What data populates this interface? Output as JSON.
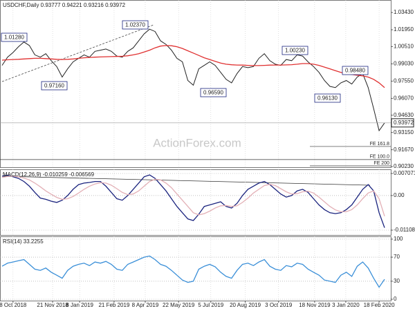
{
  "chart_data": [
    {
      "type": "line",
      "title": "USDCHF,Daily  0.93777 0.94221 0.93216 0.93972",
      "watermark": "ActionForex.com",
      "xlim": [
        0,
        70
      ],
      "ylim": [
        0.9017,
        1.045
      ],
      "grid": "x",
      "yticks": [
        {
          "value": 1.0343,
          "label": "1.03430"
        },
        {
          "value": 1.0195,
          "label": "1.01950"
        },
        {
          "value": 1.0051,
          "label": "1.00510"
        },
        {
          "value": 0.9903,
          "label": "0.99030"
        },
        {
          "value": 0.9755,
          "label": "0.97550"
        },
        {
          "value": 0.9607,
          "label": "0.96070"
        },
        {
          "value": 0.9463,
          "label": "0.94630"
        },
        {
          "value": 0.9315,
          "label": "0.93150"
        },
        {
          "value": 0.9167,
          "label": "0.91670"
        },
        {
          "value": 0.9023,
          "label": "0.90230"
        }
      ],
      "price_line": {
        "value": 0.93972,
        "label": "0.93972"
      },
      "fib_levels": [
        {
          "value": 0.9195,
          "label": "FE 161.8"
        },
        {
          "value": 0.9083,
          "label": "FE 100.0"
        },
        {
          "value": 0.9029,
          "label": "FE 200"
        }
      ],
      "annotations": [
        "1.01280",
        "0.97160",
        "1.02370",
        "0.96590",
        "1.00230",
        "0.98480",
        "0.96130"
      ],
      "series": [
        {
          "color": "#222222",
          "values": [
            0.989,
            0.996,
            1.0,
            1.005,
            1.009,
            1.006,
            0.998,
            0.996,
            0.999,
            0.993,
            0.988,
            0.979,
            0.986,
            0.992,
            0.995,
            0.998,
            0.996,
            1.001,
            1.002,
            1.003,
            1.001,
            0.997,
            0.996,
            1.001,
            1.004,
            1.01,
            1.016,
            1.02,
            1.018,
            1.01,
            1.007,
            1.002,
            0.995,
            0.992,
            0.976,
            0.972,
            0.986,
            0.989,
            0.992,
            0.989,
            0.983,
            0.977,
            0.974,
            0.982,
            0.988,
            0.987,
            0.988,
            0.995,
            0.999,
            0.993,
            0.99,
            0.989,
            0.994,
            0.993,
            0.998,
            0.997,
            0.992,
            0.988,
            0.983,
            0.976,
            0.971,
            0.97,
            0.974,
            0.976,
            0.973,
            0.979,
            0.982,
            0.97,
            0.952,
            0.933,
            0.9397
          ]
        },
        {
          "color": "#e03030",
          "values": [
            0.9935,
            0.9938,
            0.994,
            0.9942,
            0.9945,
            0.9948,
            0.995,
            0.995,
            0.9948,
            0.9945,
            0.9942,
            0.994,
            0.9942,
            0.9945,
            0.995,
            0.9955,
            0.9958,
            0.996,
            0.9962,
            0.9964,
            0.9965,
            0.9966,
            0.9968,
            0.9972,
            0.998,
            0.999,
            1.0005,
            1.002,
            1.004,
            1.0055,
            1.006,
            1.0058,
            1.005,
            1.0035,
            1.0015,
            0.9995,
            0.9975,
            0.9955,
            0.994,
            0.9925,
            0.991,
            0.99,
            0.9895,
            0.9893,
            0.9892,
            0.989,
            0.9888,
            0.9888,
            0.989,
            0.9892,
            0.9893,
            0.9893,
            0.9894,
            0.9896,
            0.99,
            0.9905,
            0.9905,
            0.99,
            0.989,
            0.9875,
            0.986,
            0.9845,
            0.983,
            0.982,
            0.9812,
            0.9805,
            0.98,
            0.979,
            0.977,
            0.974,
            0.97
          ]
        }
      ]
    },
    {
      "type": "line",
      "title": "MACD(12,26,9) -0.010259 -0.006569",
      "xlim": [
        0,
        70
      ],
      "ylim": [
        -0.012631,
        0.008397
      ],
      "grid": "both",
      "yticks": [
        {
          "value": 0.007071,
          "label": "0.007071"
        },
        {
          "value": 0,
          "label": "0.00"
        },
        {
          "value": -0.011084,
          "label": "-0.011084"
        }
      ],
      "series": [
        {
          "color": "#1a237e",
          "values": [
            0.0062,
            0.0065,
            0.006,
            0.0055,
            0.0045,
            0.003,
            0.001,
            -0.0008,
            -0.0012,
            -0.0018,
            -0.0022,
            -0.0015,
            0.0,
            0.002,
            0.0035,
            0.004,
            0.0042,
            0.0045,
            0.0045,
            0.003,
            0.001,
            -0.001,
            -0.0015,
            0.0,
            0.002,
            0.004,
            0.006,
            0.0066,
            0.0055,
            0.0035,
            0.0015,
            -0.001,
            -0.0035,
            -0.0055,
            -0.0075,
            -0.008,
            -0.006,
            -0.0035,
            -0.003,
            -0.0025,
            -0.002,
            -0.0035,
            -0.004,
            -0.0025,
            0.0,
            0.002,
            0.003,
            0.004,
            0.0045,
            0.0035,
            0.002,
            0.0005,
            -0.0005,
            0.0,
            0.0015,
            0.002,
            0.001,
            -0.001,
            -0.003,
            -0.0045,
            -0.0055,
            -0.0058,
            -0.0055,
            -0.0045,
            -0.003,
            -0.0005,
            0.002,
            0.0035,
            0.0015,
            -0.0055,
            -0.0103
          ]
        },
        {
          "color": "#e3b0b6",
          "values": [
            0.0058,
            0.0061,
            0.0062,
            0.006,
            0.0056,
            0.005,
            0.004,
            0.0028,
            0.0015,
            0.0004,
            -0.0006,
            -0.0012,
            -0.001,
            -0.0003,
            0.0008,
            0.002,
            0.003,
            0.0037,
            0.0041,
            0.004,
            0.0033,
            0.0022,
            0.001,
            0.0003,
            0.0005,
            0.0015,
            0.003,
            0.0045,
            0.0052,
            0.005,
            0.004,
            0.0025,
            0.0005,
            -0.0015,
            -0.0035,
            -0.0055,
            -0.0062,
            -0.0058,
            -0.005,
            -0.004,
            -0.0033,
            -0.0032,
            -0.0035,
            -0.0033,
            -0.0022,
            -0.0008,
            0.0008,
            0.002,
            0.0032,
            0.0036,
            0.0032,
            0.0022,
            0.0012,
            0.0005,
            0.0006,
            0.0012,
            0.0014,
            0.0008,
            -0.0005,
            -0.002,
            -0.0035,
            -0.0046,
            -0.0052,
            -0.0052,
            -0.0045,
            -0.003,
            -0.001,
            0.0008,
            0.0015,
            -0.001,
            -0.0066
          ]
        }
      ]
    },
    {
      "type": "line",
      "title": "RSI(14) 33.2255",
      "xlim": [
        0,
        70
      ],
      "ylim": [
        -2.3,
        104.6
      ],
      "grid": "both",
      "yticks": [
        100,
        70,
        30,
        0
      ],
      "xticks": [
        {
          "value": 2,
          "label": "8 Oct 2018"
        },
        {
          "value": 9.25,
          "label": "21 Nov 2018"
        },
        {
          "value": 14.2,
          "label": "8 Jan 2019"
        },
        {
          "value": 20.5,
          "label": "21 Feb 2019"
        },
        {
          "value": 26.2,
          "label": "8 Apr 2019"
        },
        {
          "value": 32.3,
          "label": "22 May 2019"
        },
        {
          "value": 38.2,
          "label": "5 Jul 2019"
        },
        {
          "value": 44.5,
          "label": "20 Aug 2019"
        },
        {
          "value": 50.6,
          "label": "3 Oct 2019"
        },
        {
          "value": 57.2,
          "label": "18 Nov 2019"
        },
        {
          "value": 62.9,
          "label": "3 Jan 2020"
        },
        {
          "value": 69,
          "label": "18 Feb 2020"
        }
      ],
      "series": [
        {
          "color": "#3a8fd8",
          "values": [
            55,
            60,
            62,
            64,
            66,
            58,
            50,
            48,
            52,
            45,
            40,
            35,
            48,
            55,
            58,
            60,
            56,
            62,
            60,
            63,
            58,
            50,
            48,
            58,
            62,
            66,
            70,
            72,
            66,
            58,
            55,
            48,
            40,
            32,
            28,
            30,
            50,
            55,
            58,
            54,
            45,
            38,
            35,
            48,
            58,
            60,
            56,
            62,
            66,
            55,
            50,
            48,
            56,
            54,
            60,
            58,
            50,
            45,
            40,
            32,
            30,
            28,
            40,
            45,
            38,
            55,
            62,
            52,
            35,
            20,
            33.2255
          ]
        }
      ]
    }
  ]
}
